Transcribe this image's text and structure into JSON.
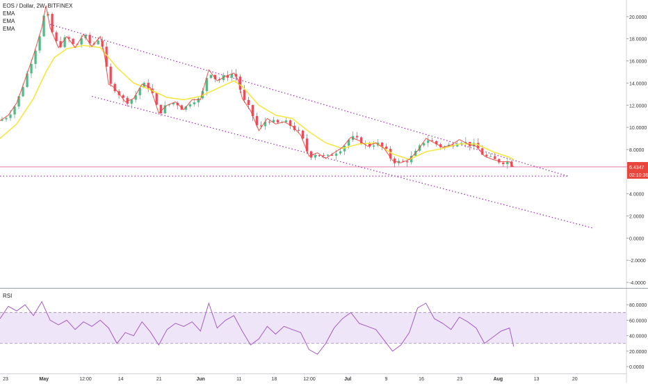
{
  "legend": {
    "symbol": "EOS / Dollar, 2W, BITFINEX",
    "indicators": [
      "EMA",
      "EMA",
      "EMA"
    ]
  },
  "price_axis": {
    "ticks": [
      "20.0000",
      "18.0000",
      "16.0000",
      "14.0000",
      "12.0000",
      "10.0000",
      "8.0000",
      "4.0000",
      "2.0000",
      "0.0000",
      "-2.0000",
      "-4.0000"
    ],
    "tick_values": [
      20,
      18,
      16,
      14,
      12,
      10,
      8,
      4,
      2,
      0,
      -2,
      -4
    ],
    "last_price": "6.4347",
    "countdown": "02:10:36"
  },
  "rsi": {
    "label": "RSI",
    "ticks": [
      "80.0000",
      "60.0000",
      "40.0000",
      "20.0000",
      "0.0000"
    ],
    "tick_values": [
      80,
      60,
      40,
      20,
      0
    ],
    "upper_band": 70,
    "lower_band": 30
  },
  "time_axis": {
    "labels": [
      "23",
      "May",
      "12:00",
      "14",
      "21",
      "Jun",
      "11",
      "18",
      "12:00",
      "Jul",
      "9",
      "16",
      "23",
      "Aug",
      "13",
      "20"
    ],
    "bold": [
      "May",
      "Jun",
      "Jul",
      "Aug"
    ]
  },
  "colors": {
    "up_candle": "#53b987",
    "down_candle": "#eb4d5c",
    "ema_yellow": "#f5e642",
    "ema_red": "#e8453c",
    "trendline": "#9c27b0",
    "price_line": "#e06699",
    "rsi_line": "#a35bbf",
    "rsi_band": "#eadcf7",
    "price_badge": "#e8453c"
  },
  "chart_data": {
    "type": "candlestick",
    "title": "EOS / Dollar, 2W, BITFINEX",
    "ylim": [
      -4.5,
      21.5
    ],
    "y_scale": "linear",
    "price_close_path": [
      [
        0,
        10.6
      ],
      [
        2,
        11.1
      ],
      [
        4,
        12.2
      ],
      [
        6,
        14.3
      ],
      [
        8,
        16.5
      ],
      [
        10,
        19.0
      ],
      [
        11,
        21.0
      ],
      [
        12,
        19.0
      ],
      [
        14,
        17.2
      ],
      [
        16,
        18.2
      ],
      [
        18,
        17.2
      ],
      [
        20,
        18.4
      ],
      [
        22,
        17.3
      ],
      [
        24,
        18.2
      ],
      [
        25,
        16.6
      ],
      [
        26,
        13.9
      ],
      [
        27,
        13.7
      ],
      [
        28,
        13.3
      ],
      [
        30,
        12.3
      ],
      [
        32,
        12.6
      ],
      [
        34,
        13.9
      ],
      [
        36,
        13.6
      ],
      [
        38,
        11.3
      ],
      [
        40,
        12.0
      ],
      [
        42,
        12.3
      ],
      [
        44,
        11.6
      ],
      [
        46,
        12.5
      ],
      [
        48,
        12.5
      ],
      [
        50,
        15.2
      ],
      [
        52,
        14.2
      ],
      [
        54,
        14.6
      ],
      [
        56,
        14.9
      ],
      [
        57,
        14.3
      ],
      [
        58,
        12.6
      ],
      [
        60,
        11.5
      ],
      [
        62,
        9.7
      ],
      [
        64,
        10.8
      ],
      [
        66,
        10.3
      ],
      [
        68,
        10.5
      ],
      [
        70,
        10.1
      ],
      [
        72,
        9.3
      ],
      [
        74,
        7.4
      ],
      [
        76,
        7.7
      ],
      [
        78,
        7.2
      ],
      [
        80,
        7.7
      ],
      [
        82,
        8.2
      ],
      [
        84,
        9.1
      ],
      [
        86,
        8.8
      ],
      [
        88,
        8.3
      ],
      [
        90,
        8.6
      ],
      [
        92,
        8.1
      ],
      [
        94,
        7.0
      ],
      [
        96,
        6.8
      ],
      [
        98,
        7.1
      ],
      [
        100,
        7.9
      ],
      [
        102,
        9.0
      ],
      [
        104,
        8.6
      ],
      [
        106,
        8.2
      ],
      [
        108,
        8.4
      ],
      [
        110,
        8.9
      ],
      [
        112,
        8.5
      ],
      [
        114,
        8.3
      ],
      [
        116,
        7.4
      ],
      [
        118,
        7.1
      ],
      [
        120,
        6.9
      ],
      [
        122,
        6.9
      ],
      [
        123,
        6.43
      ]
    ],
    "ema_slow": [
      [
        0,
        9.0
      ],
      [
        4,
        10.3
      ],
      [
        8,
        12.6
      ],
      [
        11,
        15.0
      ],
      [
        13,
        16.3
      ],
      [
        16,
        17.1
      ],
      [
        20,
        17.4
      ],
      [
        24,
        17.2
      ],
      [
        28,
        15.4
      ],
      [
        32,
        14.0
      ],
      [
        36,
        13.4
      ],
      [
        40,
        12.7
      ],
      [
        44,
        12.5
      ],
      [
        48,
        12.8
      ],
      [
        52,
        13.5
      ],
      [
        56,
        14.2
      ],
      [
        58,
        13.7
      ],
      [
        62,
        12.0
      ],
      [
        66,
        11.1
      ],
      [
        70,
        10.8
      ],
      [
        74,
        9.6
      ],
      [
        78,
        8.6
      ],
      [
        82,
        8.1
      ],
      [
        86,
        8.5
      ],
      [
        90,
        8.6
      ],
      [
        94,
        7.6
      ],
      [
        98,
        7.1
      ],
      [
        102,
        7.8
      ],
      [
        106,
        8.1
      ],
      [
        110,
        8.5
      ],
      [
        114,
        8.5
      ],
      [
        118,
        7.8
      ],
      [
        122,
        7.3
      ],
      [
        123,
        7.1
      ]
    ],
    "trendline_upper": [
      [
        12,
        19.3
      ],
      [
        136,
        5.6
      ]
    ],
    "trendline_lower": [
      [
        22,
        12.8
      ],
      [
        142,
        0.9
      ]
    ],
    "support_line": 5.6,
    "rsi_values": [
      [
        0,
        62
      ],
      [
        2,
        78
      ],
      [
        4,
        72
      ],
      [
        6,
        80
      ],
      [
        8,
        66
      ],
      [
        10,
        84
      ],
      [
        12,
        60
      ],
      [
        14,
        54
      ],
      [
        16,
        60
      ],
      [
        18,
        48
      ],
      [
        20,
        58
      ],
      [
        22,
        52
      ],
      [
        24,
        60
      ],
      [
        26,
        50
      ],
      [
        28,
        30
      ],
      [
        30,
        44
      ],
      [
        32,
        40
      ],
      [
        34,
        58
      ],
      [
        36,
        45
      ],
      [
        38,
        28
      ],
      [
        40,
        48
      ],
      [
        42,
        56
      ],
      [
        44,
        52
      ],
      [
        46,
        58
      ],
      [
        48,
        46
      ],
      [
        50,
        82
      ],
      [
        52,
        50
      ],
      [
        54,
        60
      ],
      [
        56,
        66
      ],
      [
        58,
        46
      ],
      [
        60,
        28
      ],
      [
        62,
        36
      ],
      [
        64,
        52
      ],
      [
        66,
        42
      ],
      [
        68,
        52
      ],
      [
        70,
        48
      ],
      [
        72,
        44
      ],
      [
        74,
        22
      ],
      [
        76,
        16
      ],
      [
        78,
        30
      ],
      [
        80,
        50
      ],
      [
        82,
        62
      ],
      [
        84,
        70
      ],
      [
        86,
        56
      ],
      [
        88,
        52
      ],
      [
        90,
        48
      ],
      [
        92,
        34
      ],
      [
        94,
        20
      ],
      [
        96,
        28
      ],
      [
        98,
        44
      ],
      [
        100,
        76
      ],
      [
        102,
        82
      ],
      [
        104,
        62
      ],
      [
        106,
        56
      ],
      [
        108,
        48
      ],
      [
        110,
        64
      ],
      [
        112,
        58
      ],
      [
        114,
        50
      ],
      [
        116,
        30
      ],
      [
        118,
        38
      ],
      [
        120,
        46
      ],
      [
        122,
        50
      ],
      [
        123,
        26
      ]
    ]
  }
}
